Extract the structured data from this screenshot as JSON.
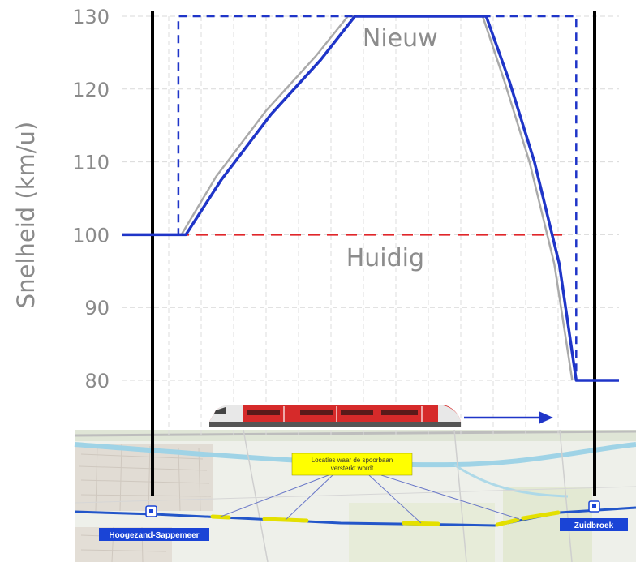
{
  "chart_data": {
    "type": "line",
    "title": "",
    "xlabel": "",
    "ylabel": "Snelheid (km/u)",
    "ylim": [
      80,
      130
    ],
    "yticks": [
      80,
      90,
      100,
      110,
      120,
      130
    ],
    "xlim": [
      0,
      100
    ],
    "grid": true,
    "series": [
      {
        "name": "Nieuw",
        "style": "dashed",
        "color": "#1f35c8",
        "x": [
          0,
          11.4,
          11.4,
          91.4,
          91.4,
          100
        ],
        "y": [
          100,
          100,
          130,
          130,
          80,
          80
        ]
      },
      {
        "name": "Huidig",
        "style": "dashed",
        "color": "#e0262a",
        "x": [
          0,
          90
        ],
        "y": [
          100,
          100
        ]
      },
      {
        "name": "",
        "style": "solid",
        "color": "#1f35c8",
        "x": [
          0,
          12.9,
          20,
          30,
          40,
          46.9,
          73.3,
          78,
          83,
          88,
          91.4,
          100
        ],
        "y": [
          100,
          100,
          107.5,
          116.5,
          124,
          130,
          130,
          121,
          110,
          96,
          80,
          80
        ]
      },
      {
        "name": "",
        "style": "solid",
        "color": "#aaaaaa",
        "x": [
          12,
          19,
          29,
          39,
          45.5,
          72.6,
          77,
          82,
          87,
          90.6
        ],
        "y": [
          100,
          108,
          117,
          124.5,
          130,
          130,
          121,
          110,
          96,
          80
        ]
      }
    ],
    "boundaries_x": [
      6.2,
      100
    ],
    "annotations": [
      {
        "text": "Nieuw",
        "x": 56,
        "y": 127
      },
      {
        "text": "Huidig",
        "x": 53,
        "y": 96.8
      }
    ]
  },
  "map": {
    "callout": "Locaties waar de spoorbaan versterkt wordt",
    "station_left": "Hoogezand-Sappemeer",
    "station_right": "Zuidbroek",
    "colors": {
      "rail": "#2356c9",
      "marker": "#e4e000",
      "station": "#1a44d6",
      "callout": "#ffff00"
    }
  },
  "train": {
    "direction": "right",
    "colors": {
      "body": "#d62a2a",
      "nose": "#e8e8e8",
      "arrow": "#1f35c8"
    }
  }
}
